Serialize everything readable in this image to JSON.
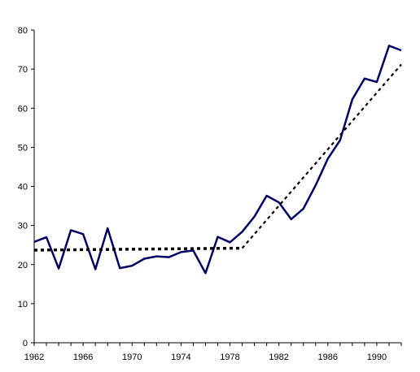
{
  "chart_data": {
    "type": "line",
    "title": "",
    "xlabel": "",
    "ylabel": "",
    "xlim": [
      1962,
      1992
    ],
    "ylim": [
      0,
      80
    ],
    "x_ticks": [
      1962,
      1966,
      1970,
      1974,
      1978,
      1982,
      1986,
      1990
    ],
    "x_tick_labels": [
      "1962",
      "1966",
      "1970",
      "1974",
      "1978",
      "1982",
      "1986",
      "1990"
    ],
    "y_ticks": [
      0,
      10,
      20,
      30,
      40,
      50,
      60,
      70,
      80
    ],
    "y_tick_labels": [
      "0",
      "10",
      "20",
      "30",
      "40",
      "50",
      "60",
      "70",
      "80"
    ],
    "grid": false,
    "legend": "none",
    "series": [
      {
        "style": "solid",
        "color": "#000066",
        "x": [
          1962,
          1963,
          1964,
          1965,
          1966,
          1967,
          1968,
          1969,
          1970,
          1971,
          1972,
          1973,
          1974,
          1975,
          1976,
          1977,
          1978,
          1979,
          1980,
          1981,
          1982,
          1983,
          1984,
          1985,
          1986,
          1987,
          1988,
          1989,
          1990,
          1991,
          1992
        ],
        "y": [
          25.8,
          27.0,
          19.0,
          28.8,
          27.8,
          18.8,
          29.3,
          19.1,
          19.7,
          21.5,
          22.1,
          21.9,
          23.2,
          23.6,
          17.8,
          27.1,
          25.7,
          28.4,
          32.3,
          37.6,
          35.9,
          31.6,
          34.3,
          40.3,
          47.1,
          51.8,
          62.3,
          67.6,
          66.7,
          76.0,
          74.8
        ]
      },
      {
        "style": "dashed",
        "color": "#000000",
        "x": [
          1962,
          1979,
          1992
        ],
        "y": [
          23.7,
          24.2,
          71.2
        ]
      }
    ]
  }
}
